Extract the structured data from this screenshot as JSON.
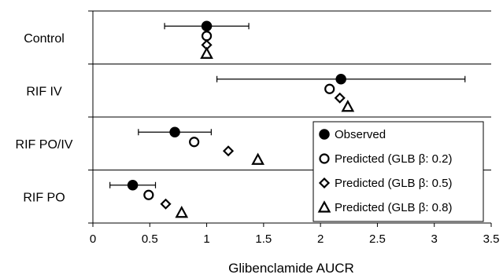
{
  "chart_data": {
    "type": "scatter",
    "xlabel": "Glibenclamide AUCR",
    "ylabel": "",
    "xlim": [
      0,
      3.5
    ],
    "xticks": [
      "0",
      "0.5",
      "1",
      "1.5",
      "2",
      "2.5",
      "3",
      "3.5"
    ],
    "categories": [
      "Control",
      "RIF IV",
      "RIF PO/IV",
      "RIF PO"
    ],
    "grid": "horizontal separators between groups",
    "legend_position": "bottom-right",
    "series": [
      {
        "name": "Observed",
        "marker": "filled-circle",
        "values": [
          1.0,
          2.18,
          0.72,
          0.35
        ],
        "error_low": [
          0.63,
          1.09,
          0.4,
          0.15
        ],
        "error_high": [
          1.37,
          3.27,
          1.04,
          0.55
        ]
      },
      {
        "name": "Predicted (GLB β: 0.2)",
        "marker": "open-circle",
        "values": [
          1.0,
          2.08,
          0.89,
          0.49
        ]
      },
      {
        "name": "Predicted (GLB β: 0.5)",
        "marker": "open-diamond",
        "values": [
          1.0,
          2.17,
          1.19,
          0.64
        ]
      },
      {
        "name": "Predicted (GLB β: 0.8)",
        "marker": "open-triangle",
        "values": [
          1.0,
          2.24,
          1.45,
          0.78
        ]
      }
    ]
  }
}
